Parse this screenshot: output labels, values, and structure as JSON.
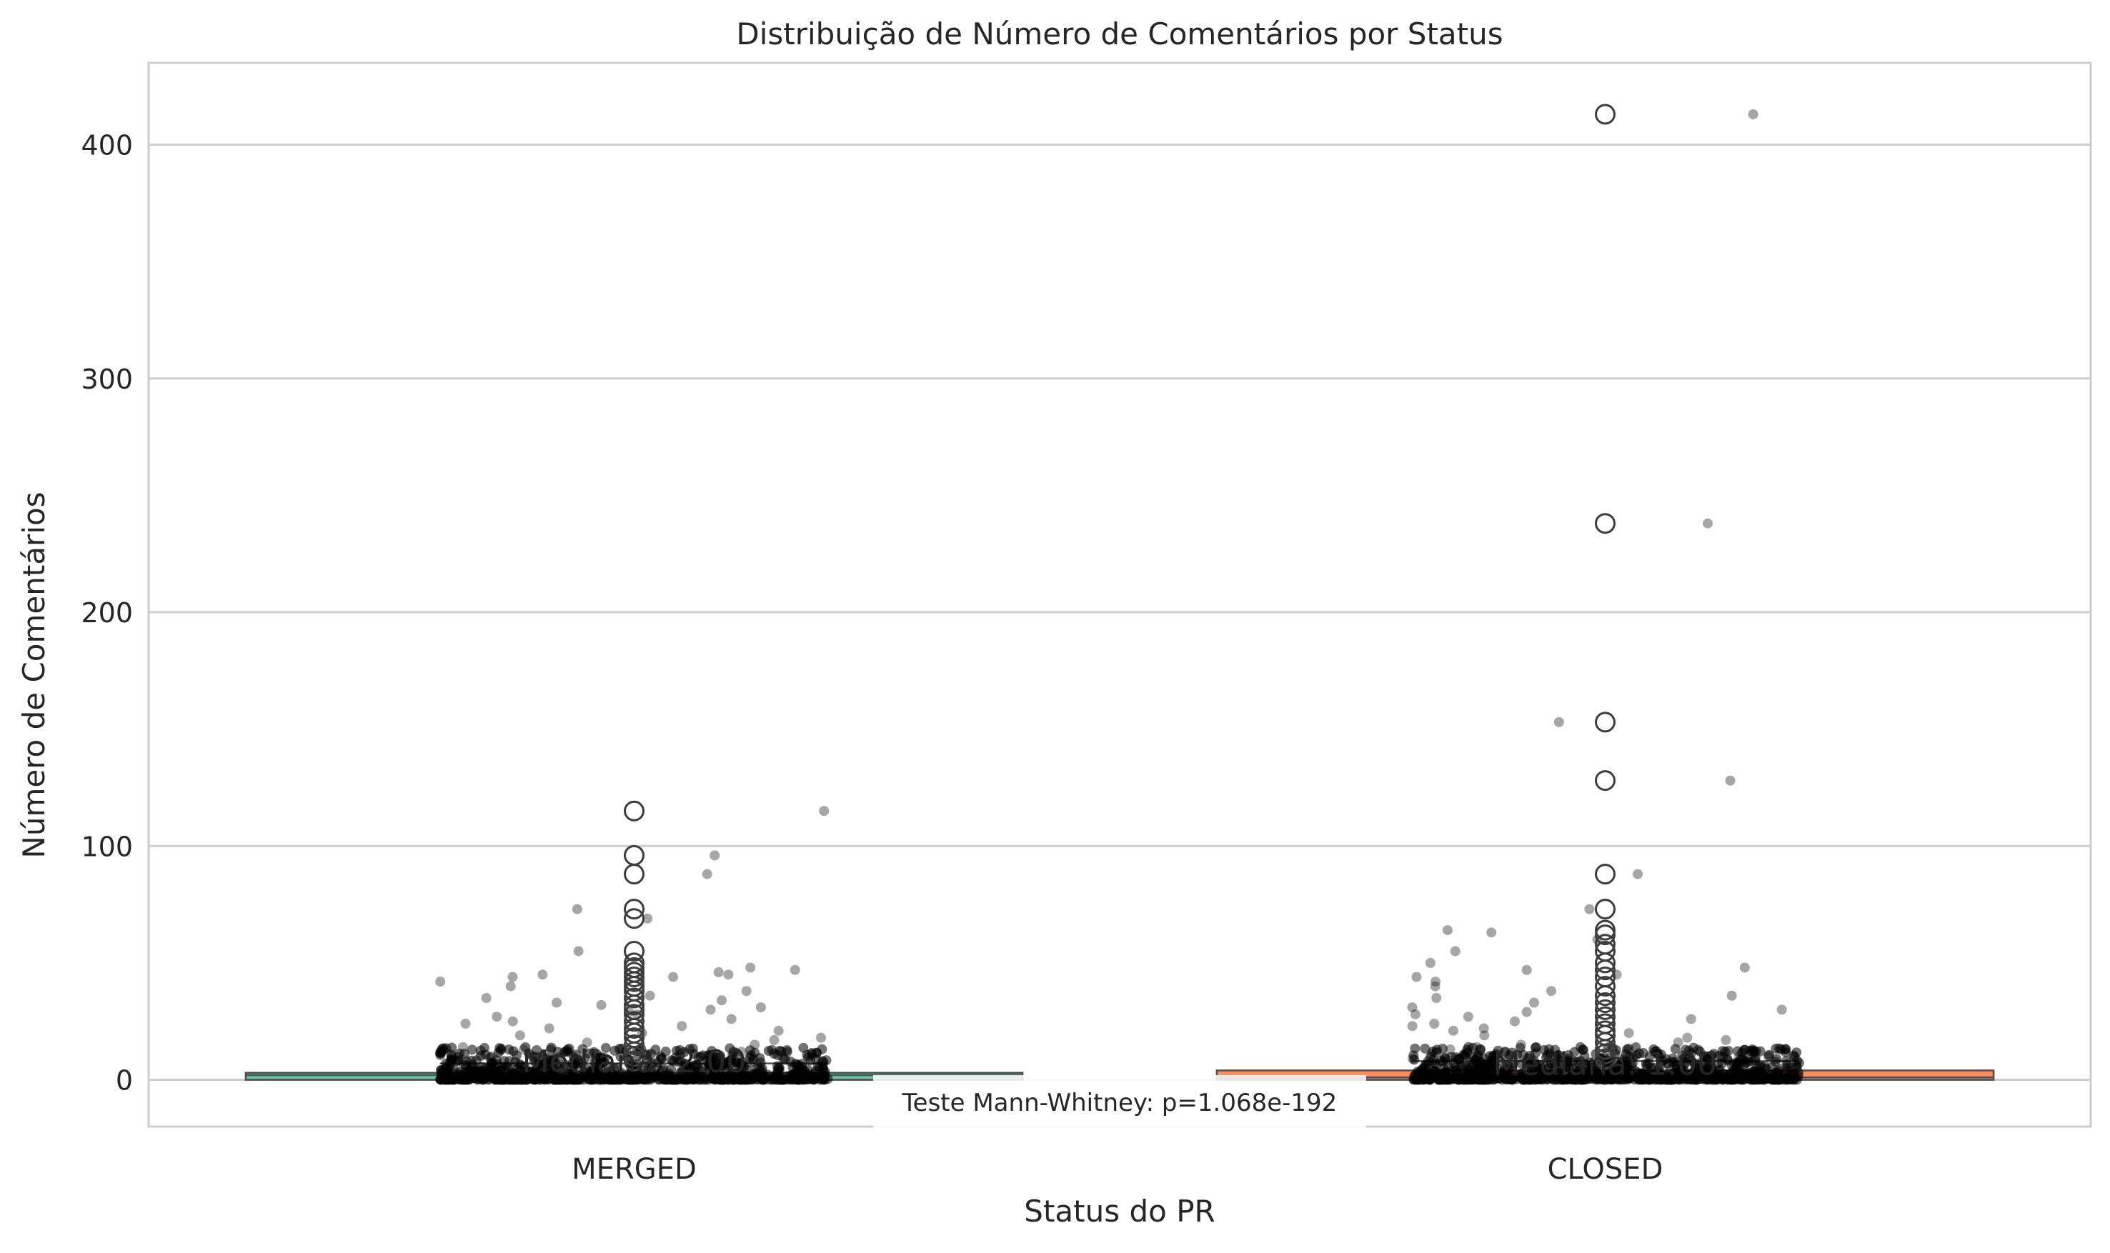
{
  "chart_data": {
    "type": "box",
    "title": "Distribuição de Número de Comentários por Status",
    "xlabel": "Status do PR",
    "ylabel": "Número de Comentários",
    "categories": [
      "MERGED",
      "CLOSED"
    ],
    "ylim": [
      -20,
      435
    ],
    "yticks": [
      0,
      100,
      200,
      300,
      400
    ],
    "grid": true,
    "legend": "none",
    "colors": {
      "MERGED": "#66c2a5",
      "CLOSED": "#fc8d62",
      "points": "#000000",
      "grid": "#cccccc",
      "axis": "#cccccc"
    },
    "boxes": [
      {
        "category": "MERGED",
        "q1": 0,
        "median": 2,
        "q3": 3,
        "whisker_low": 0,
        "whisker_high": 7,
        "outliers": [
          8,
          10,
          12,
          15,
          18,
          20,
          22,
          25,
          28,
          30,
          32,
          35,
          38,
          40,
          42,
          44,
          46,
          48,
          50,
          55,
          69,
          73,
          88,
          96,
          115
        ],
        "median_label": "Mediana: 2.00"
      },
      {
        "category": "CLOSED",
        "q1": 0,
        "median": 1,
        "q3": 4,
        "whisker_low": 0,
        "whisker_high": 8,
        "outliers": [
          9,
          11,
          13,
          16,
          19,
          21,
          24,
          27,
          30,
          33,
          36,
          40,
          44,
          47,
          50,
          55,
          58,
          62,
          64,
          73,
          88,
          128,
          153,
          238,
          413
        ],
        "median_label": "Mediana: 1.00"
      }
    ],
    "strip_points": {
      "MERGED": [
        115,
        96,
        88,
        73,
        69,
        55,
        48,
        47,
        46,
        45,
        45,
        44,
        44,
        42,
        40,
        38,
        36,
        35,
        34,
        33,
        32,
        31,
        30,
        29,
        28,
        27,
        26,
        25,
        24,
        23,
        22,
        21,
        20,
        19,
        18,
        17,
        16,
        15,
        14,
        13,
        12,
        11,
        10,
        9,
        8
      ],
      "CLOSED": [
        413,
        238,
        153,
        128,
        88,
        73,
        64,
        63,
        60,
        55,
        50,
        48,
        47,
        45,
        44,
        42,
        40,
        38,
        36,
        35,
        33,
        31,
        30,
        29,
        28,
        27,
        26,
        25,
        24,
        23,
        22,
        21,
        20,
        19,
        18,
        17,
        16,
        15,
        14,
        13,
        12,
        11,
        10,
        9,
        8
      ]
    },
    "annotation": "Teste Mann-Whitney: p=1.068e-192"
  }
}
